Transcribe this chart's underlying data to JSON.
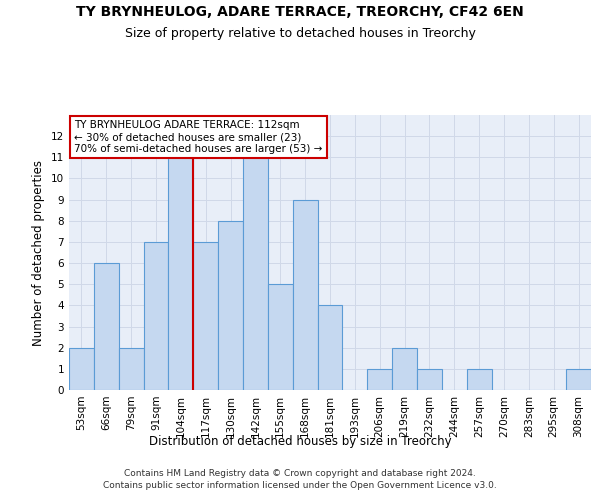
{
  "title": "TY BRYNHEULOG, ADARE TERRACE, TREORCHY, CF42 6EN",
  "subtitle": "Size of property relative to detached houses in Treorchy",
  "xlabel": "Distribution of detached houses by size in Treorchy",
  "ylabel": "Number of detached properties",
  "categories": [
    "53sqm",
    "66sqm",
    "79sqm",
    "91sqm",
    "104sqm",
    "117sqm",
    "130sqm",
    "142sqm",
    "155sqm",
    "168sqm",
    "181sqm",
    "193sqm",
    "206sqm",
    "219sqm",
    "232sqm",
    "244sqm",
    "257sqm",
    "270sqm",
    "283sqm",
    "295sqm",
    "308sqm"
  ],
  "values": [
    2,
    6,
    2,
    7,
    11,
    7,
    8,
    11,
    5,
    9,
    4,
    0,
    1,
    2,
    1,
    0,
    1,
    0,
    0,
    0,
    1
  ],
  "bar_color": "#c5d8f0",
  "bar_edge_color": "#5b9bd5",
  "vline_x_index": 4.5,
  "vline_color": "#cc0000",
  "annotation_text": "TY BRYNHEULOG ADARE TERRACE: 112sqm\n← 30% of detached houses are smaller (23)\n70% of semi-detached houses are larger (53) →",
  "annotation_box_color": "#ffffff",
  "annotation_box_edge_color": "#cc0000",
  "ylim": [
    0,
    13
  ],
  "yticks": [
    0,
    1,
    2,
    3,
    4,
    5,
    6,
    7,
    8,
    9,
    10,
    11,
    12,
    13
  ],
  "grid_color": "#d0d8e8",
  "bg_color": "#e8eef8",
  "footer": "Contains HM Land Registry data © Crown copyright and database right 2024.\nContains public sector information licensed under the Open Government Licence v3.0.",
  "title_fontsize": 10,
  "subtitle_fontsize": 9,
  "xlabel_fontsize": 8.5,
  "ylabel_fontsize": 8.5,
  "tick_fontsize": 7.5,
  "annotation_fontsize": 7.5,
  "footer_fontsize": 6.5
}
